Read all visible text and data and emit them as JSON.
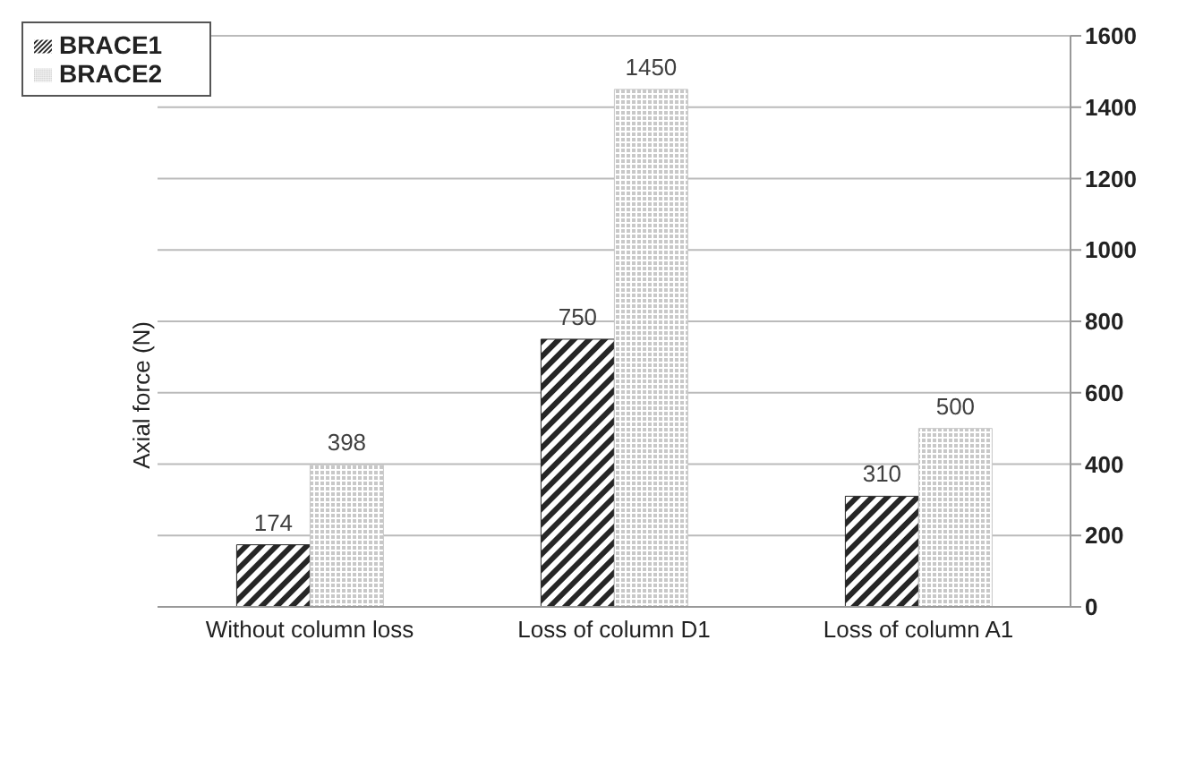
{
  "chart_data": {
    "type": "bar",
    "ylabel": "Axial force (N)",
    "categories": [
      "Without column loss",
      "Loss of column D1",
      "Loss of column A1"
    ],
    "series": [
      {
        "name": "BRACE1",
        "color": "#262626",
        "values": [
          174,
          750,
          310
        ]
      },
      {
        "name": "BRACE2",
        "color": "#c8c8c8",
        "values": [
          398,
          1450,
          500
        ]
      }
    ],
    "ylim": [
      0,
      1600
    ],
    "yticks": [
      0,
      200,
      400,
      600,
      800,
      1000,
      1200,
      1400,
      1600
    ],
    "grid": "y",
    "legend": "top left",
    "data_labels": true
  }
}
